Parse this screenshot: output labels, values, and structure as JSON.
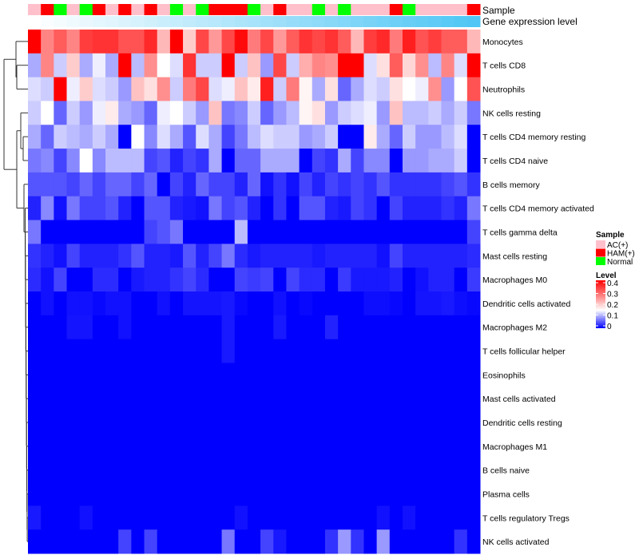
{
  "chart_data": {
    "type": "heatmap",
    "annotation_labels": {
      "sample": "Sample",
      "gene": "Gene expression level"
    },
    "legend": {
      "sample_title": "Sample",
      "sample_groups": [
        {
          "name": "AC(+)",
          "color": "#ffc0cb"
        },
        {
          "name": "HAM(+)",
          "color": "#ff0000"
        },
        {
          "name": "Normal",
          "color": "#00ff00"
        }
      ],
      "level_title": "Level",
      "level_ticks": [
        "0.4",
        "0.3",
        "0.2",
        "0.1",
        "0"
      ],
      "level_range": [
        0,
        0.4
      ],
      "colors": {
        "low": "#0000ff",
        "mid": "#ffffff",
        "high": "#ff0000"
      }
    },
    "samples": [
      "AC(+)",
      "HAM(+)",
      "Normal",
      "AC(+)",
      "Normal",
      "HAM(+)",
      "AC(+)",
      "HAM(+)",
      "AC(+)",
      "HAM(+)",
      "AC(+)",
      "Normal",
      "AC(+)",
      "Normal",
      "HAM(+)",
      "HAM(+)",
      "HAM(+)",
      "Normal",
      "AC(+)",
      "HAM(+)",
      "AC(+)",
      "AC(+)",
      "Normal",
      "AC(+)",
      "Normal",
      "AC(+)",
      "AC(+)",
      "AC(+)",
      "HAM(+)",
      "Normal",
      "AC(+)",
      "AC(+)",
      "AC(+)",
      "AC(+)",
      "HAM(+)"
    ],
    "gene_expression_gradient": [
      "#ffffff",
      "#4fc6f5"
    ],
    "rows": [
      "Monocytes",
      "T cells CD8",
      "Neutrophils",
      "NK cells resting",
      "T cells CD4 memory resting",
      "T cells CD4 naive",
      "B cells memory",
      "T cells CD4 memory activated",
      "T cells gamma delta",
      "Mast cells resting",
      "Macrophages M0",
      "Dendritic cells activated",
      "Macrophages M2",
      "T cells follicular helper",
      "Eosinophils",
      "Mast cells activated",
      "Dendritic cells resting",
      "Macrophages M1",
      "B cells naive",
      "Plasma cells",
      "T cells regulatory  Tregs",
      "NK cells activated"
    ],
    "values": [
      [
        0.4,
        0.27,
        0.31,
        0.27,
        0.34,
        0.35,
        0.35,
        0.32,
        0.32,
        0.36,
        0.22,
        0.4,
        0.2,
        0.33,
        0.25,
        0.33,
        0.39,
        0.28,
        0.33,
        0.25,
        0.31,
        0.35,
        0.33,
        0.35,
        0.31,
        0.22,
        0.34,
        0.36,
        0.28,
        0.37,
        0.32,
        0.34,
        0.31,
        0.31,
        0.22
      ],
      [
        0.1,
        0.27,
        0.12,
        0.2,
        0.1,
        0.14,
        0.1,
        0.4,
        0.11,
        0.26,
        0.15,
        0.13,
        0.35,
        0.12,
        0.12,
        0.4,
        0.12,
        0.21,
        0.09,
        0.33,
        0.12,
        0.23,
        0.27,
        0.26,
        0.4,
        0.4,
        0.13,
        0.18,
        0.31,
        0.19,
        0.26,
        0.11,
        0.27,
        0.13,
        0.4
      ],
      [
        0.13,
        0.12,
        0.4,
        0.14,
        0.2,
        0.13,
        0.12,
        0.09,
        0.21,
        0.18,
        0.26,
        0.12,
        0.28,
        0.33,
        0.13,
        0.14,
        0.21,
        0.17,
        0.37,
        0.12,
        0.28,
        0.16,
        0.1,
        0.18,
        0.06,
        0.1,
        0.13,
        0.12,
        0.18,
        0.15,
        0.14,
        0.26,
        0.09,
        0.15,
        0.32
      ],
      [
        0.12,
        0.15,
        0.06,
        0.12,
        0.09,
        0.14,
        0.17,
        0.1,
        0.09,
        0.06,
        0.14,
        0.15,
        0.12,
        0.09,
        0.21,
        0.07,
        0.08,
        0.12,
        0.06,
        0.09,
        0.11,
        0.16,
        0.18,
        0.09,
        0.12,
        0.13,
        0.14,
        0.09,
        0.21,
        0.11,
        0.11,
        0.12,
        0.1,
        0.12,
        0.07
      ],
      [
        0.1,
        0.06,
        0.12,
        0.11,
        0.1,
        0.12,
        0.1,
        0.0,
        0.15,
        0.08,
        0.13,
        0.1,
        0.05,
        0.13,
        0.1,
        0.04,
        0.07,
        0.11,
        0.13,
        0.12,
        0.12,
        0.09,
        0.1,
        0.12,
        0.0,
        0.0,
        0.17,
        0.1,
        0.06,
        0.12,
        0.09,
        0.09,
        0.11,
        0.13,
        0.0
      ],
      [
        0.07,
        0.08,
        0.04,
        0.08,
        0.15,
        0.08,
        0.11,
        0.11,
        0.11,
        0.04,
        0.05,
        0.02,
        0.04,
        0.03,
        0.1,
        0.0,
        0.06,
        0.06,
        0.1,
        0.1,
        0.1,
        0.0,
        0.04,
        0.03,
        0.1,
        0.04,
        0.08,
        0.08,
        0.0,
        0.09,
        0.09,
        0.1,
        0.1,
        0.12,
        0.0
      ],
      [
        0.05,
        0.05,
        0.05,
        0.04,
        0.06,
        0.04,
        0.06,
        0.06,
        0.04,
        0.06,
        0.0,
        0.04,
        0.02,
        0.06,
        0.04,
        0.04,
        0.02,
        0.06,
        0.01,
        0.03,
        0.01,
        0.04,
        0.02,
        0.04,
        0.03,
        0.04,
        0.03,
        0.05,
        0.03,
        0.03,
        0.03,
        0.03,
        0.04,
        0.05,
        0.03
      ],
      [
        0.02,
        0.08,
        0.01,
        0.07,
        0.04,
        0.04,
        0.05,
        0.02,
        0.0,
        0.05,
        0.05,
        0.02,
        0.015,
        0.01,
        0.07,
        0.04,
        0.05,
        0.02,
        0.0,
        0.03,
        0.0,
        0.05,
        0.05,
        0.02,
        0.015,
        0.04,
        0.03,
        0.0,
        0.04,
        0.02,
        0.02,
        0.02,
        0.03,
        0.02,
        0.07
      ],
      [
        0.07,
        0,
        0,
        0,
        0,
        0,
        0,
        0,
        0,
        0.04,
        0.05,
        0.07,
        0,
        0,
        0,
        0,
        0.11,
        0,
        0,
        0,
        0,
        0,
        0,
        0,
        0,
        0,
        0,
        0,
        0,
        0,
        0,
        0,
        0,
        0,
        0.04
      ],
      [
        0.03,
        0.02,
        0.01,
        0.04,
        0.02,
        0.02,
        0.02,
        0.03,
        0.05,
        0.02,
        0.02,
        0.015,
        0.05,
        0.02,
        0.04,
        0.07,
        0.025,
        0.015,
        0.02,
        0.02,
        0.02,
        0.02,
        0.015,
        0.02,
        0.02,
        0.02,
        0.02,
        0.01,
        0.04,
        0.02,
        0.02,
        0.02,
        0.02,
        0.02,
        0.025
      ],
      [
        0.025,
        0.01,
        0.04,
        0,
        0,
        0.025,
        0.025,
        0,
        0.015,
        0.02,
        0.02,
        0.03,
        0.04,
        0.025,
        0,
        0,
        0.04,
        0.035,
        0.04,
        0,
        0.04,
        0.025,
        0.025,
        0,
        0.035,
        0.015,
        0.015,
        0.015,
        0.02,
        0,
        0.01,
        0.02,
        0.02,
        0,
        0.035
      ],
      [
        0,
        0.01,
        0,
        0.01,
        0.01,
        0.005,
        0.01,
        0.01,
        0,
        0,
        0.01,
        0,
        0.012,
        0.012,
        0.012,
        0.015,
        0.005,
        0,
        0,
        0.01,
        0,
        0.005,
        0,
        0,
        0,
        0,
        0.008,
        0.008,
        0.005,
        0,
        0.012,
        0.012,
        0.015,
        0.008,
        0.005
      ],
      [
        0,
        0,
        0,
        0.012,
        0.012,
        0,
        0,
        0.01,
        0,
        0,
        0,
        0,
        0,
        0,
        0,
        0.015,
        0,
        0,
        0,
        0.015,
        0,
        0,
        0,
        0.02,
        0,
        0,
        0,
        0,
        0,
        0,
        0,
        0,
        0,
        0,
        0
      ],
      [
        0,
        0,
        0,
        0,
        0,
        0,
        0,
        0,
        0,
        0,
        0,
        0,
        0,
        0,
        0,
        0.015,
        0,
        0,
        0,
        0,
        0,
        0,
        0,
        0,
        0,
        0,
        0,
        0,
        0,
        0,
        0,
        0,
        0,
        0,
        0
      ],
      [
        0,
        0,
        0,
        0,
        0,
        0,
        0,
        0,
        0,
        0,
        0,
        0,
        0,
        0,
        0,
        0,
        0,
        0,
        0,
        0,
        0,
        0,
        0,
        0,
        0,
        0,
        0,
        0,
        0,
        0,
        0,
        0,
        0,
        0,
        0
      ],
      [
        0,
        0,
        0,
        0,
        0,
        0,
        0,
        0,
        0,
        0,
        0,
        0,
        0,
        0,
        0,
        0,
        0,
        0,
        0,
        0,
        0,
        0,
        0,
        0,
        0,
        0,
        0,
        0,
        0,
        0,
        0,
        0,
        0,
        0,
        0
      ],
      [
        0,
        0,
        0,
        0,
        0,
        0,
        0,
        0,
        0,
        0,
        0,
        0,
        0,
        0,
        0,
        0,
        0,
        0,
        0,
        0,
        0,
        0,
        0,
        0,
        0,
        0,
        0,
        0,
        0,
        0,
        0,
        0,
        0,
        0,
        0
      ],
      [
        0,
        0,
        0,
        0,
        0,
        0,
        0,
        0,
        0,
        0,
        0,
        0,
        0,
        0,
        0,
        0,
        0,
        0,
        0,
        0,
        0,
        0,
        0,
        0,
        0,
        0,
        0,
        0,
        0,
        0,
        0,
        0,
        0,
        0,
        0
      ],
      [
        0,
        0,
        0,
        0,
        0,
        0,
        0,
        0,
        0,
        0,
        0,
        0,
        0,
        0,
        0,
        0,
        0,
        0,
        0,
        0,
        0,
        0,
        0,
        0,
        0,
        0,
        0,
        0,
        0,
        0,
        0,
        0,
        0,
        0,
        0
      ],
      [
        0,
        0,
        0,
        0,
        0,
        0,
        0,
        0,
        0,
        0,
        0,
        0,
        0,
        0,
        0,
        0,
        0,
        0,
        0,
        0,
        0,
        0,
        0,
        0,
        0,
        0,
        0,
        0,
        0,
        0,
        0,
        0,
        0,
        0,
        0
      ],
      [
        0.015,
        0,
        0,
        0,
        0.01,
        0,
        0,
        0,
        0,
        0,
        0,
        0,
        0,
        0,
        0,
        0,
        0.01,
        0,
        0,
        0,
        0,
        0,
        0,
        0,
        0,
        0,
        0,
        0.01,
        0,
        0.01,
        0,
        0,
        0,
        0,
        0
      ],
      [
        0,
        0,
        0,
        0,
        0,
        0,
        0,
        0.04,
        0,
        0.04,
        0,
        0,
        0,
        0,
        0,
        0.07,
        0,
        0,
        0.04,
        0.015,
        0,
        0,
        0,
        0.03,
        0.09,
        0.03,
        0,
        0.09,
        0,
        0,
        0,
        0,
        0,
        0.03,
        0
      ]
    ]
  }
}
